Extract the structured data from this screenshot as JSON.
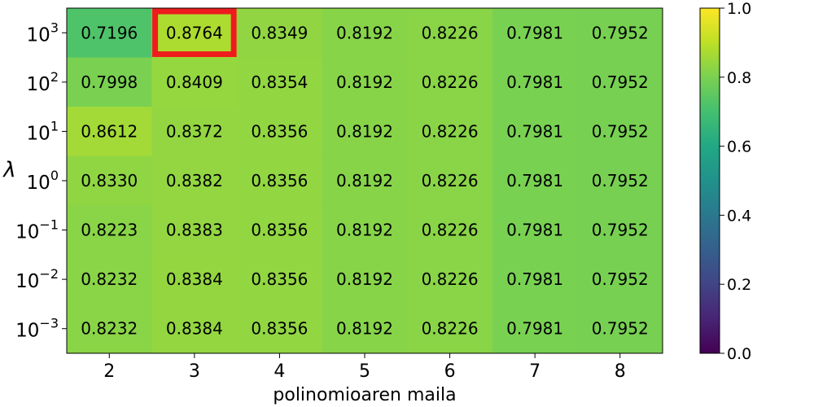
{
  "chart_data": {
    "type": "heatmap",
    "xlabel": "polinomioaren maila",
    "ylabel": "λ",
    "x": [
      "2",
      "3",
      "4",
      "5",
      "6",
      "7",
      "8"
    ],
    "y": [
      {
        "base": "10",
        "exp": "3"
      },
      {
        "base": "10",
        "exp": "2"
      },
      {
        "base": "10",
        "exp": "1"
      },
      {
        "base": "10",
        "exp": "0"
      },
      {
        "base": "10",
        "exp": "−1"
      },
      {
        "base": "10",
        "exp": "−2"
      },
      {
        "base": "10",
        "exp": "−3"
      }
    ],
    "values": [
      [
        0.7196,
        0.8764,
        0.8349,
        0.8192,
        0.8226,
        0.7981,
        0.7952
      ],
      [
        0.7998,
        0.8409,
        0.8354,
        0.8192,
        0.8226,
        0.7981,
        0.7952
      ],
      [
        0.8612,
        0.8372,
        0.8356,
        0.8192,
        0.8226,
        0.7981,
        0.7952
      ],
      [
        0.833,
        0.8382,
        0.8356,
        0.8192,
        0.8226,
        0.7981,
        0.7952
      ],
      [
        0.8223,
        0.8383,
        0.8356,
        0.8192,
        0.8226,
        0.7981,
        0.7952
      ],
      [
        0.8232,
        0.8384,
        0.8356,
        0.8192,
        0.8226,
        0.7981,
        0.7952
      ],
      [
        0.8232,
        0.8384,
        0.8356,
        0.8192,
        0.8226,
        0.7981,
        0.7952
      ]
    ],
    "highlight": {
      "row": 0,
      "col": 1,
      "color": "#ee1c1c"
    },
    "colormap": "viridis",
    "colorbar": {
      "min": 0.0,
      "max": 1.0,
      "ticks": [
        "0.0",
        "0.2",
        "0.4",
        "0.6",
        "0.8",
        "1.0"
      ]
    }
  }
}
